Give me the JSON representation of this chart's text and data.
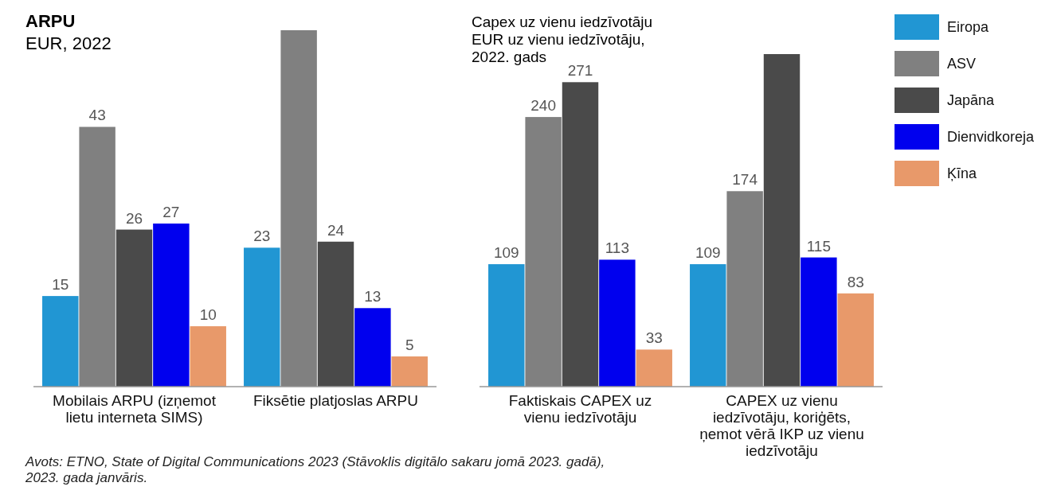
{
  "chart_data": [
    {
      "type": "bar",
      "title": "ARPU",
      "subtitle": "EUR, 2022",
      "categories": [
        "Mobilais ARPU (izņemot lietu interneta SIMS)",
        "Fiksētie platjoslas ARPU"
      ],
      "series": [
        {
          "color": "#2196d3",
          "values": [
            15,
            23
          ],
          "value_labels": [
            "15",
            "23"
          ]
        },
        {
          "color": "#808080",
          "values": [
            43,
            59
          ],
          "value_labels": [
            "43",
            null
          ]
        },
        {
          "color": "#4a4a4a",
          "values": [
            26,
            24
          ],
          "value_labels": [
            "26",
            "24"
          ]
        },
        {
          "color": "#0000ee",
          "values": [
            27,
            13
          ],
          "value_labels": [
            "27",
            "13"
          ]
        },
        {
          "color": "#e8996a",
          "values": [
            10,
            5
          ],
          "value_labels": [
            "10",
            "5"
          ]
        }
      ],
      "annotations": [
        "Avots: ETNO, State of Digital Communications 2023 (Stāvoklis digitālo sakaru jomā 2023. gadā), 2023. gada janvāris."
      ]
    },
    {
      "type": "bar",
      "title": "Capex uz vienu iedzīvotāju",
      "subtitle": "EUR uz vienu iedzīvotāju, 2022. gads",
      "categories": [
        "Faktiskais CAPEX uz vienu iedzīvotāju",
        "CAPEX uz vienu iedzīvotāju, koriģēts, ņemot vērā IKP uz vienu iedzīvotāju"
      ],
      "series": [
        {
          "name": "Eiropa",
          "color": "#2196d3",
          "values": [
            109,
            109
          ],
          "value_labels": [
            "109",
            "109"
          ]
        },
        {
          "name": "ASV",
          "color": "#808080",
          "values": [
            240,
            174
          ],
          "value_labels": [
            "240",
            "174"
          ]
        },
        {
          "name": "Japāna",
          "color": "#4a4a4a",
          "values": [
            271,
            296
          ],
          "value_labels": [
            "271",
            null
          ]
        },
        {
          "name": "Dienvidkoreja",
          "color": "#0000ee",
          "values": [
            113,
            115
          ],
          "value_labels": [
            "113",
            "115"
          ]
        },
        {
          "name": "Ķīna",
          "color": "#e8996a",
          "values": [
            33,
            83
          ],
          "value_labels": [
            "33",
            "83"
          ]
        }
      ],
      "legend": "top right"
    }
  ]
}
